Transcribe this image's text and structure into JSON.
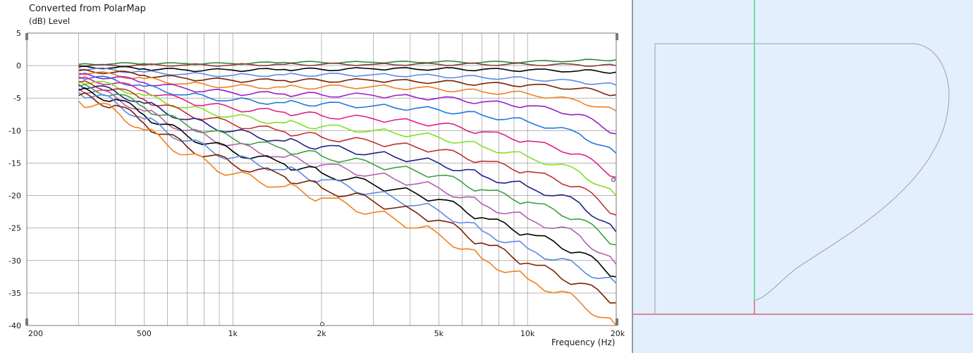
{
  "window": {
    "title": "Converted from PolarMap",
    "y_axis_label": "(dB)  Level",
    "x_axis_label": "Frequency  (Hz)"
  },
  "chart_data": {
    "type": "line",
    "title": "Converted from PolarMap",
    "xlabel": "Frequency  (Hz)",
    "ylabel": "(dB)  Level",
    "xscale": "log",
    "xlim": [
      200,
      20000
    ],
    "ylim": [
      -40,
      5
    ],
    "grid": true,
    "x_ticks": [
      {
        "value": 200,
        "label": "200"
      },
      {
        "value": 500,
        "label": "500"
      },
      {
        "value": 1000,
        "label": "1k"
      },
      {
        "value": 2000,
        "label": "2k"
      },
      {
        "value": 5000,
        "label": "5k"
      },
      {
        "value": 10000,
        "label": "10k"
      },
      {
        "value": 20000,
        "label": "20k"
      }
    ],
    "y_ticks": [
      {
        "value": 5,
        "label": "5"
      },
      {
        "value": 0,
        "label": "0"
      },
      {
        "value": -5,
        "label": "-5"
      },
      {
        "value": -10,
        "label": "-10"
      },
      {
        "value": -15,
        "label": "-15"
      },
      {
        "value": -20,
        "label": "-20"
      },
      {
        "value": -25,
        "label": "-25"
      },
      {
        "value": -30,
        "label": "-30"
      },
      {
        "value": -35,
        "label": "-35"
      },
      {
        "value": -40,
        "label": "-40"
      }
    ],
    "x": [
      300,
      400,
      500,
      700,
      1000,
      1500,
      2000,
      3000,
      5000,
      7000,
      10000,
      15000,
      20000
    ],
    "series": [
      {
        "color": "#2f8a3a",
        "values": [
          0.2,
          0.3,
          0.3,
          0.3,
          0.3,
          0.5,
          0.5,
          0.5,
          0.6,
          0.5,
          0.6,
          0.8,
          0.9
        ]
      },
      {
        "color": "#8a3a3a",
        "values": [
          0.0,
          0.0,
          0.1,
          0.1,
          0.1,
          0.2,
          0.2,
          0.2,
          0.2,
          0.2,
          0.2,
          0.1,
          0.0
        ]
      },
      {
        "color": "#000000",
        "values": [
          -0.2,
          -0.3,
          -0.5,
          -0.7,
          -0.7,
          -0.6,
          -0.6,
          -0.5,
          -0.5,
          -0.6,
          -0.7,
          -0.8,
          -1.0
        ]
      },
      {
        "color": "#5b8ae8",
        "values": [
          -0.5,
          -0.7,
          -1.0,
          -1.3,
          -1.5,
          -1.4,
          -1.4,
          -1.4,
          -1.6,
          -1.8,
          -2.0,
          -2.5,
          -3.0
        ]
      },
      {
        "color": "#7a2000",
        "values": [
          -0.8,
          -1.0,
          -1.5,
          -2.0,
          -2.3,
          -2.3,
          -2.3,
          -2.3,
          -2.5,
          -2.8,
          -3.0,
          -3.5,
          -4.5
        ]
      },
      {
        "color": "#f08020",
        "values": [
          -1.1,
          -1.4,
          -2.0,
          -2.8,
          -3.2,
          -3.3,
          -3.3,
          -3.2,
          -3.6,
          -4.0,
          -4.3,
          -5.5,
          -7.0
        ]
      },
      {
        "color": "#9a20c8",
        "values": [
          -1.4,
          -1.8,
          -2.6,
          -3.6,
          -4.2,
          -4.4,
          -4.5,
          -4.6,
          -5.0,
          -5.6,
          -6.2,
          -7.5,
          -10.5
        ]
      },
      {
        "color": "#2078e0",
        "values": [
          -1.7,
          -2.2,
          -3.2,
          -4.5,
          -5.3,
          -5.7,
          -5.9,
          -6.2,
          -6.8,
          -7.6,
          -8.6,
          -10.5,
          -13.5
        ]
      },
      {
        "color": "#e0208a",
        "values": [
          -2.0,
          -2.7,
          -3.9,
          -5.5,
          -6.6,
          -7.2,
          -7.7,
          -8.2,
          -9.0,
          -10.2,
          -11.6,
          -13.6,
          -17.2
        ]
      },
      {
        "color": "#80e020",
        "values": [
          -2.3,
          -3.2,
          -4.6,
          -6.5,
          -7.8,
          -8.8,
          -9.4,
          -10.0,
          -11.0,
          -12.4,
          -14.0,
          -16.3,
          -20.0
        ]
      },
      {
        "color": "#c03030",
        "values": [
          -2.6,
          -3.6,
          -5.2,
          -7.4,
          -9.0,
          -10.2,
          -11.0,
          -11.8,
          -13.0,
          -14.7,
          -16.3,
          -18.6,
          -23.0
        ]
      },
      {
        "color": "#20208a",
        "values": [
          -2.9,
          -4.0,
          -5.8,
          -8.3,
          -10.1,
          -11.6,
          -12.5,
          -13.5,
          -15.0,
          -16.9,
          -18.6,
          -21.1,
          -25.6
        ]
      },
      {
        "color": "#40a040",
        "values": [
          -3.2,
          -4.4,
          -6.4,
          -9.2,
          -11.2,
          -12.9,
          -13.9,
          -15.2,
          -16.9,
          -19.1,
          -21.0,
          -23.6,
          -27.6
        ]
      },
      {
        "color": "#b060b0",
        "values": [
          -3.5,
          -4.8,
          -7.0,
          -10.0,
          -12.2,
          -14.1,
          -15.3,
          -16.8,
          -18.8,
          -21.3,
          -23.5,
          -26.1,
          -30.6
        ]
      },
      {
        "color": "#000000",
        "values": [
          -3.8,
          -5.2,
          -7.6,
          -10.8,
          -13.2,
          -15.2,
          -16.5,
          -18.3,
          -20.6,
          -23.4,
          -25.9,
          -28.7,
          -32.5
        ]
      },
      {
        "color": "#5b8ae8",
        "values": [
          -4.1,
          -5.6,
          -8.2,
          -11.6,
          -14.2,
          -16.0,
          -17.6,
          -19.6,
          -22.3,
          -25.4,
          -28.1,
          -31.1,
          -33.5
        ]
      },
      {
        "color": "#7a2000",
        "values": [
          -4.6,
          -6.1,
          -8.9,
          -12.5,
          -15.2,
          -17.1,
          -18.8,
          -20.9,
          -23.8,
          -27.3,
          -30.4,
          -33.5,
          -36.5
        ]
      },
      {
        "color": "#f08020",
        "values": [
          -5.5,
          -6.9,
          -9.9,
          -13.7,
          -16.7,
          -18.6,
          -20.4,
          -22.6,
          -25.9,
          -29.7,
          -32.8,
          -36.3,
          -40.0
        ]
      }
    ]
  },
  "profile_view": {
    "background_color": "#e3efff",
    "axis_colors": {
      "vertical": "#00d040",
      "horizontal": "#d02020"
    },
    "outline_color": "#b0b0b0"
  }
}
